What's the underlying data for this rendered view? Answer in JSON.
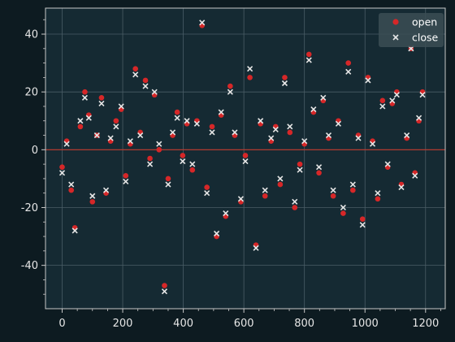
{
  "colors": {
    "background": "#0d1b21",
    "axes_face": "#152a33",
    "grid": "#4a5d66",
    "spine": "#c8c8c8",
    "zero_line": "#c0392b",
    "open_marker": "#d62728",
    "close_marker": "#e6e6e6"
  },
  "chart_data": {
    "type": "scatter",
    "title": "",
    "xlabel": "",
    "ylabel": "",
    "xlim": [
      -55,
      1265
    ],
    "ylim": [
      -55,
      49
    ],
    "xticks": [
      0,
      200,
      400,
      600,
      800,
      1000,
      1200
    ],
    "yticks": [
      -40,
      -20,
      0,
      20,
      40
    ],
    "grid": true,
    "hline": 0,
    "legend_position": "top-right",
    "series": [
      {
        "name": "open",
        "marker": "circle",
        "x": [
          0,
          15,
          30,
          42,
          60,
          75,
          88,
          100,
          115,
          130,
          145,
          160,
          178,
          195,
          210,
          225,
          242,
          258,
          275,
          290,
          305,
          320,
          338,
          350,
          365,
          380,
          398,
          412,
          430,
          445,
          462,
          478,
          495,
          510,
          525,
          540,
          555,
          570,
          590,
          605,
          620,
          640,
          655,
          670,
          690,
          705,
          720,
          735,
          752,
          768,
          785,
          800,
          815,
          830,
          848,
          862,
          880,
          895,
          912,
          928,
          945,
          960,
          978,
          992,
          1010,
          1025,
          1042,
          1058,
          1075,
          1090,
          1105,
          1120,
          1138,
          1152,
          1165,
          1178,
          1190
        ],
        "y": [
          -6,
          3,
          -14,
          -27,
          8,
          20,
          12,
          -18,
          5,
          18,
          -15,
          3,
          10,
          14,
          -9,
          2,
          28,
          6,
          24,
          -3,
          19,
          0,
          -47,
          -10,
          5,
          13,
          -2,
          9,
          -7,
          10,
          43,
          -13,
          8,
          -30,
          12,
          -23,
          22,
          5,
          -18,
          -2,
          25,
          -33,
          9,
          -16,
          3,
          8,
          -12,
          25,
          6,
          -20,
          -5,
          2,
          33,
          13,
          -8,
          17,
          4,
          -16,
          10,
          -22,
          30,
          -14,
          5,
          -24,
          25,
          3,
          -17,
          17,
          -6,
          16,
          20,
          -12,
          4,
          35,
          -8,
          10,
          20
        ]
      },
      {
        "name": "close",
        "marker": "x",
        "x": [
          0,
          15,
          30,
          42,
          60,
          75,
          88,
          100,
          115,
          130,
          145,
          160,
          178,
          195,
          210,
          225,
          242,
          258,
          275,
          290,
          305,
          320,
          338,
          350,
          365,
          380,
          398,
          412,
          430,
          445,
          462,
          478,
          495,
          510,
          525,
          540,
          555,
          570,
          590,
          605,
          620,
          640,
          655,
          670,
          690,
          705,
          720,
          735,
          752,
          768,
          785,
          800,
          815,
          830,
          848,
          862,
          880,
          895,
          912,
          928,
          945,
          960,
          978,
          992,
          1010,
          1025,
          1042,
          1058,
          1075,
          1090,
          1105,
          1120,
          1138,
          1152,
          1165,
          1178,
          1190
        ],
        "y": [
          -8,
          2,
          -12,
          -28,
          10,
          18,
          11,
          -16,
          5,
          16,
          -14,
          4,
          8,
          15,
          -11,
          3,
          26,
          5,
          22,
          -5,
          20,
          2,
          -49,
          -12,
          6,
          11,
          -4,
          10,
          -5,
          9,
          44,
          -15,
          6,
          -29,
          13,
          -22,
          20,
          6,
          -17,
          -4,
          28,
          -34,
          10,
          -14,
          4,
          7,
          -10,
          23,
          8,
          -18,
          -7,
          3,
          31,
          14,
          -6,
          18,
          5,
          -14,
          9,
          -20,
          27,
          -12,
          4,
          -26,
          24,
          2,
          -15,
          15,
          -5,
          17,
          19,
          -13,
          5,
          35,
          -9,
          11,
          19
        ]
      }
    ]
  }
}
